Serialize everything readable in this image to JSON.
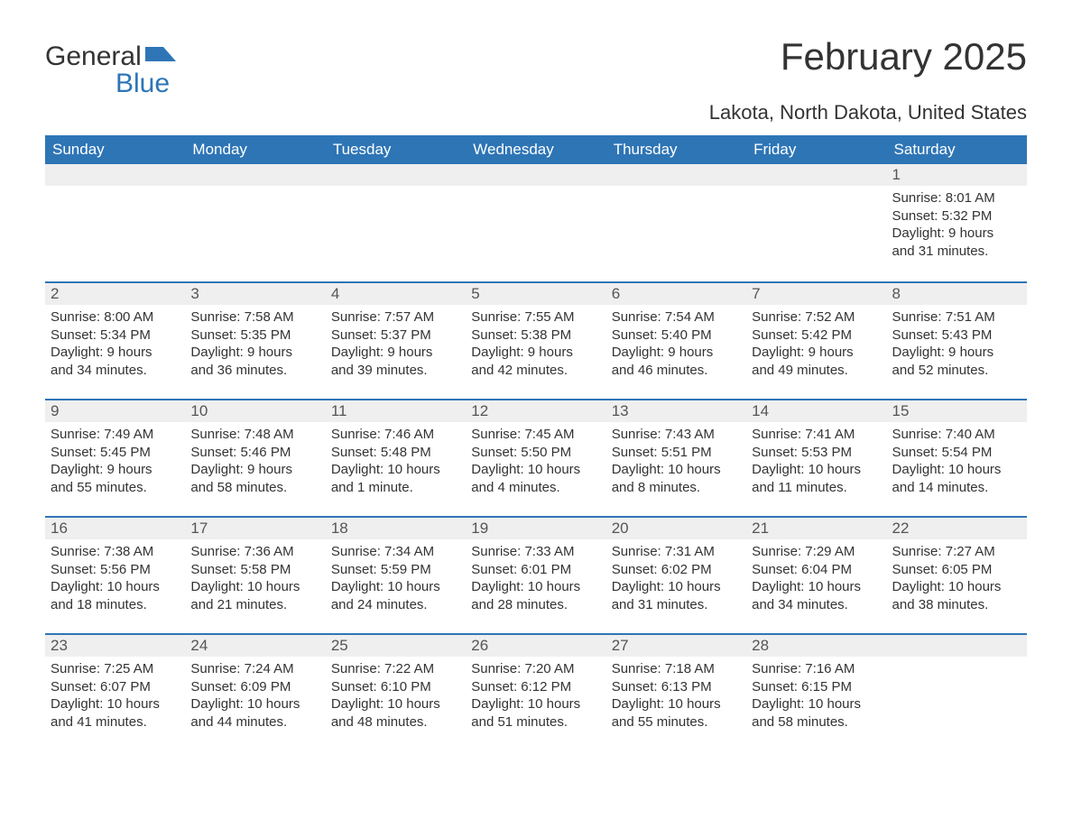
{
  "logo": {
    "line1": "General",
    "line2": "Blue",
    "icon_color": "#2e75b6"
  },
  "title": "February 2025",
  "subtitle": "Lakota, North Dakota, United States",
  "colors": {
    "header_bg": "#2e75b6",
    "header_text": "#ffffff",
    "daynum_bg": "#efefef",
    "row_border": "#2e75b6",
    "body_text": "#333333"
  },
  "weekdays": [
    "Sunday",
    "Monday",
    "Tuesday",
    "Wednesday",
    "Thursday",
    "Friday",
    "Saturday"
  ],
  "weeks": [
    [
      null,
      null,
      null,
      null,
      null,
      null,
      {
        "n": "1",
        "sr": "Sunrise: 8:01 AM",
        "ss": "Sunset: 5:32 PM",
        "d1": "Daylight: 9 hours",
        "d2": "and 31 minutes."
      }
    ],
    [
      {
        "n": "2",
        "sr": "Sunrise: 8:00 AM",
        "ss": "Sunset: 5:34 PM",
        "d1": "Daylight: 9 hours",
        "d2": "and 34 minutes."
      },
      {
        "n": "3",
        "sr": "Sunrise: 7:58 AM",
        "ss": "Sunset: 5:35 PM",
        "d1": "Daylight: 9 hours",
        "d2": "and 36 minutes."
      },
      {
        "n": "4",
        "sr": "Sunrise: 7:57 AM",
        "ss": "Sunset: 5:37 PM",
        "d1": "Daylight: 9 hours",
        "d2": "and 39 minutes."
      },
      {
        "n": "5",
        "sr": "Sunrise: 7:55 AM",
        "ss": "Sunset: 5:38 PM",
        "d1": "Daylight: 9 hours",
        "d2": "and 42 minutes."
      },
      {
        "n": "6",
        "sr": "Sunrise: 7:54 AM",
        "ss": "Sunset: 5:40 PM",
        "d1": "Daylight: 9 hours",
        "d2": "and 46 minutes."
      },
      {
        "n": "7",
        "sr": "Sunrise: 7:52 AM",
        "ss": "Sunset: 5:42 PM",
        "d1": "Daylight: 9 hours",
        "d2": "and 49 minutes."
      },
      {
        "n": "8",
        "sr": "Sunrise: 7:51 AM",
        "ss": "Sunset: 5:43 PM",
        "d1": "Daylight: 9 hours",
        "d2": "and 52 minutes."
      }
    ],
    [
      {
        "n": "9",
        "sr": "Sunrise: 7:49 AM",
        "ss": "Sunset: 5:45 PM",
        "d1": "Daylight: 9 hours",
        "d2": "and 55 minutes."
      },
      {
        "n": "10",
        "sr": "Sunrise: 7:48 AM",
        "ss": "Sunset: 5:46 PM",
        "d1": "Daylight: 9 hours",
        "d2": "and 58 minutes."
      },
      {
        "n": "11",
        "sr": "Sunrise: 7:46 AM",
        "ss": "Sunset: 5:48 PM",
        "d1": "Daylight: 10 hours",
        "d2": "and 1 minute."
      },
      {
        "n": "12",
        "sr": "Sunrise: 7:45 AM",
        "ss": "Sunset: 5:50 PM",
        "d1": "Daylight: 10 hours",
        "d2": "and 4 minutes."
      },
      {
        "n": "13",
        "sr": "Sunrise: 7:43 AM",
        "ss": "Sunset: 5:51 PM",
        "d1": "Daylight: 10 hours",
        "d2": "and 8 minutes."
      },
      {
        "n": "14",
        "sr": "Sunrise: 7:41 AM",
        "ss": "Sunset: 5:53 PM",
        "d1": "Daylight: 10 hours",
        "d2": "and 11 minutes."
      },
      {
        "n": "15",
        "sr": "Sunrise: 7:40 AM",
        "ss": "Sunset: 5:54 PM",
        "d1": "Daylight: 10 hours",
        "d2": "and 14 minutes."
      }
    ],
    [
      {
        "n": "16",
        "sr": "Sunrise: 7:38 AM",
        "ss": "Sunset: 5:56 PM",
        "d1": "Daylight: 10 hours",
        "d2": "and 18 minutes."
      },
      {
        "n": "17",
        "sr": "Sunrise: 7:36 AM",
        "ss": "Sunset: 5:58 PM",
        "d1": "Daylight: 10 hours",
        "d2": "and 21 minutes."
      },
      {
        "n": "18",
        "sr": "Sunrise: 7:34 AM",
        "ss": "Sunset: 5:59 PM",
        "d1": "Daylight: 10 hours",
        "d2": "and 24 minutes."
      },
      {
        "n": "19",
        "sr": "Sunrise: 7:33 AM",
        "ss": "Sunset: 6:01 PM",
        "d1": "Daylight: 10 hours",
        "d2": "and 28 minutes."
      },
      {
        "n": "20",
        "sr": "Sunrise: 7:31 AM",
        "ss": "Sunset: 6:02 PM",
        "d1": "Daylight: 10 hours",
        "d2": "and 31 minutes."
      },
      {
        "n": "21",
        "sr": "Sunrise: 7:29 AM",
        "ss": "Sunset: 6:04 PM",
        "d1": "Daylight: 10 hours",
        "d2": "and 34 minutes."
      },
      {
        "n": "22",
        "sr": "Sunrise: 7:27 AM",
        "ss": "Sunset: 6:05 PM",
        "d1": "Daylight: 10 hours",
        "d2": "and 38 minutes."
      }
    ],
    [
      {
        "n": "23",
        "sr": "Sunrise: 7:25 AM",
        "ss": "Sunset: 6:07 PM",
        "d1": "Daylight: 10 hours",
        "d2": "and 41 minutes."
      },
      {
        "n": "24",
        "sr": "Sunrise: 7:24 AM",
        "ss": "Sunset: 6:09 PM",
        "d1": "Daylight: 10 hours",
        "d2": "and 44 minutes."
      },
      {
        "n": "25",
        "sr": "Sunrise: 7:22 AM",
        "ss": "Sunset: 6:10 PM",
        "d1": "Daylight: 10 hours",
        "d2": "and 48 minutes."
      },
      {
        "n": "26",
        "sr": "Sunrise: 7:20 AM",
        "ss": "Sunset: 6:12 PM",
        "d1": "Daylight: 10 hours",
        "d2": "and 51 minutes."
      },
      {
        "n": "27",
        "sr": "Sunrise: 7:18 AM",
        "ss": "Sunset: 6:13 PM",
        "d1": "Daylight: 10 hours",
        "d2": "and 55 minutes."
      },
      {
        "n": "28",
        "sr": "Sunrise: 7:16 AM",
        "ss": "Sunset: 6:15 PM",
        "d1": "Daylight: 10 hours",
        "d2": "and 58 minutes."
      },
      null
    ]
  ]
}
